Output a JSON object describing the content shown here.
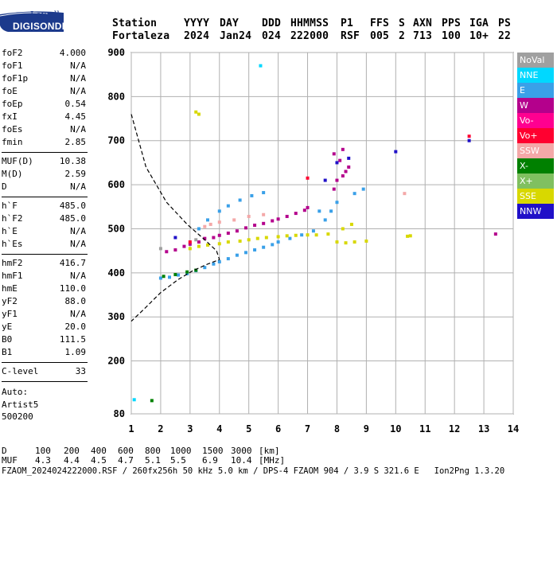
{
  "logo": {
    "brand_top": "Lowell",
    "brand_bottom": "DIGISONDE"
  },
  "header": {
    "labels": [
      "Station",
      "YYYY",
      "DAY",
      "DDD",
      "HHMMSS",
      "P1",
      "FFS",
      "S",
      "AXN",
      "PPS",
      "IGA",
      "PS"
    ],
    "values": [
      "Fortaleza",
      "2024",
      "Jan24",
      "024",
      "222000",
      "RSF",
      "005",
      "2",
      "713",
      "100",
      "10+",
      "22"
    ]
  },
  "params": [
    {
      "label": "foF2",
      "value": "4.000"
    },
    {
      "label": "foF1",
      "value": "N/A"
    },
    {
      "label": "foF1p",
      "value": "N/A"
    },
    {
      "label": "foE",
      "value": "N/A"
    },
    {
      "label": "foEp",
      "value": "0.54"
    },
    {
      "label": "fxI",
      "value": "4.45"
    },
    {
      "label": "foEs",
      "value": "N/A"
    },
    {
      "label": "fmin",
      "value": "2.85"
    },
    {
      "label": "MUF(D)",
      "value": "10.38"
    },
    {
      "label": "M(D)",
      "value": "2.59"
    },
    {
      "label": "D",
      "value": "N/A"
    },
    {
      "label": "h`F",
      "value": "485.0"
    },
    {
      "label": "h`F2",
      "value": "485.0"
    },
    {
      "label": "h`E",
      "value": "N/A"
    },
    {
      "label": "h`Es",
      "value": "N/A"
    },
    {
      "label": "hmF2",
      "value": "416.7"
    },
    {
      "label": "hmF1",
      "value": "N/A"
    },
    {
      "label": "hmE",
      "value": "110.0"
    },
    {
      "label": "yF2",
      "value": "88.0"
    },
    {
      "label": "yF1",
      "value": "N/A"
    },
    {
      "label": "yE",
      "value": "20.0"
    },
    {
      "label": "B0",
      "value": "111.5"
    },
    {
      "label": "B1",
      "value": "1.09"
    },
    {
      "label": "C-level",
      "value": "33"
    }
  ],
  "autoscale": {
    "label": "Auto:",
    "software": "Artist5",
    "version": "500200"
  },
  "legend": [
    {
      "label": "NoVal",
      "color": "#a0a0a0"
    },
    {
      "label": "NNE",
      "color": "#00d8ff"
    },
    {
      "label": "E",
      "color": "#3aa0e8"
    },
    {
      "label": "W",
      "color": "#b4008c"
    },
    {
      "label": "Vo-",
      "color": "#ff0090"
    },
    {
      "label": "Vo+",
      "color": "#ff0030"
    },
    {
      "label": "SSW",
      "color": "#f4a8a8"
    },
    {
      "label": "X-",
      "color": "#008000"
    },
    {
      "label": "X+",
      "color": "#80c060"
    },
    {
      "label": "SSE",
      "color": "#d8d800"
    },
    {
      "label": "NNW",
      "color": "#2010c8"
    }
  ],
  "chart_data": {
    "type": "scatter",
    "x_ticks": [
      1,
      2,
      3,
      4,
      5,
      6,
      7,
      8,
      9,
      10,
      11,
      12,
      13,
      14
    ],
    "y_ticks": [
      80,
      200,
      300,
      400,
      500,
      600,
      700,
      800,
      900
    ],
    "xlim": [
      1,
      14
    ],
    "ylim": [
      80,
      900
    ],
    "y_scale": "quasi-log (virtual height, km)",
    "grid": true,
    "series": [
      {
        "color": "#b4008c",
        "points": [
          [
            2.2,
            448
          ],
          [
            2.5,
            452
          ],
          [
            2.8,
            460
          ],
          [
            3.0,
            465
          ],
          [
            3.3,
            470
          ],
          [
            3.5,
            478
          ],
          [
            3.8,
            480
          ],
          [
            4.0,
            485
          ],
          [
            4.3,
            490
          ],
          [
            4.6,
            495
          ],
          [
            4.9,
            502
          ],
          [
            5.2,
            508
          ],
          [
            5.5,
            512
          ],
          [
            5.8,
            518
          ],
          [
            6.0,
            522
          ],
          [
            6.3,
            528
          ],
          [
            6.6,
            535
          ],
          [
            6.9,
            542
          ],
          [
            7.0,
            548
          ],
          [
            7.9,
            590
          ],
          [
            8.0,
            610
          ],
          [
            8.2,
            620
          ],
          [
            8.3,
            630
          ],
          [
            8.4,
            640
          ],
          [
            8.1,
            655
          ],
          [
            7.9,
            670
          ],
          [
            8.2,
            680
          ],
          [
            13.4,
            488
          ]
        ]
      },
      {
        "color": "#3aa0e8",
        "points": [
          [
            2.0,
            388
          ],
          [
            2.3,
            390
          ],
          [
            2.6,
            395
          ],
          [
            2.9,
            398
          ],
          [
            3.2,
            405
          ],
          [
            3.5,
            412
          ],
          [
            3.8,
            420
          ],
          [
            4.0,
            425
          ],
          [
            4.3,
            432
          ],
          [
            4.6,
            440
          ],
          [
            4.9,
            446
          ],
          [
            5.2,
            452
          ],
          [
            5.5,
            458
          ],
          [
            5.8,
            464
          ],
          [
            6.0,
            470
          ],
          [
            6.4,
            478
          ],
          [
            6.8,
            486
          ],
          [
            7.2,
            495
          ],
          [
            7.6,
            520
          ],
          [
            7.8,
            540
          ],
          [
            8.0,
            560
          ],
          [
            3.3,
            500
          ],
          [
            3.6,
            520
          ],
          [
            4.0,
            540
          ],
          [
            4.3,
            552
          ],
          [
            4.7,
            565
          ],
          [
            5.1,
            575
          ],
          [
            5.5,
            582
          ],
          [
            7.4,
            540
          ],
          [
            8.6,
            580
          ],
          [
            8.9,
            590
          ]
        ]
      },
      {
        "color": "#d8d800",
        "points": [
          [
            3.0,
            455
          ],
          [
            3.3,
            460
          ],
          [
            3.6,
            463
          ],
          [
            4.0,
            466
          ],
          [
            4.3,
            470
          ],
          [
            4.7,
            472
          ],
          [
            5.0,
            475
          ],
          [
            5.3,
            478
          ],
          [
            5.6,
            480
          ],
          [
            6.0,
            482
          ],
          [
            6.3,
            484
          ],
          [
            6.6,
            485
          ],
          [
            7.0,
            486
          ],
          [
            7.3,
            486
          ],
          [
            7.7,
            488
          ],
          [
            8.0,
            470
          ],
          [
            8.3,
            468
          ],
          [
            8.6,
            470
          ],
          [
            9.0,
            472
          ],
          [
            8.2,
            500
          ],
          [
            8.5,
            510
          ],
          [
            10.4,
            483
          ],
          [
            10.5,
            484
          ],
          [
            3.2,
            765
          ],
          [
            3.3,
            760
          ]
        ]
      },
      {
        "color": "#008000",
        "points": [
          [
            2.1,
            392
          ],
          [
            2.5,
            396
          ],
          [
            2.9,
            402
          ],
          [
            3.2,
            406
          ],
          [
            1.7,
            110
          ]
        ]
      },
      {
        "color": "#f4a8a8",
        "points": [
          [
            3.5,
            505
          ],
          [
            3.7,
            510
          ],
          [
            4.0,
            515
          ],
          [
            4.5,
            520
          ],
          [
            5.0,
            528
          ],
          [
            5.5,
            532
          ],
          [
            10.3,
            580
          ]
        ]
      },
      {
        "color": "#2010c8",
        "points": [
          [
            7.6,
            610
          ],
          [
            8.0,
            650
          ],
          [
            8.4,
            660
          ],
          [
            10.0,
            675
          ],
          [
            12.5,
            700
          ],
          [
            2.5,
            480
          ]
        ]
      },
      {
        "color": "#ff0030",
        "points": [
          [
            7.0,
            615
          ],
          [
            3.0,
            470
          ],
          [
            12.5,
            710
          ]
        ]
      },
      {
        "color": "#00d8ff",
        "points": [
          [
            5.4,
            870
          ],
          [
            1.1,
            112
          ]
        ]
      },
      {
        "color": "#a0a0a0",
        "points": [
          [
            2.0,
            455
          ],
          [
            3.2,
            475
          ]
        ]
      }
    ]
  },
  "profile_line": [
    [
      1.0,
      760
    ],
    [
      1.5,
      640
    ],
    [
      2.2,
      560
    ],
    [
      2.9,
      510
    ],
    [
      3.5,
      475
    ],
    [
      3.9,
      450
    ],
    [
      4.0,
      430
    ],
    [
      3.6,
      420
    ],
    [
      3.1,
      405
    ],
    [
      2.6,
      385
    ],
    [
      2.0,
      355
    ],
    [
      1.5,
      322
    ],
    [
      1.0,
      290
    ]
  ],
  "footer": {
    "row1": [
      "D",
      "100",
      "200",
      "400",
      "600",
      "800",
      "1000",
      "1500",
      "3000",
      "[km]"
    ],
    "row2": [
      "MUF",
      "4.3",
      "4.4",
      "4.5",
      "4.7",
      "5.1",
      "5.5",
      "6.9",
      "10.4",
      "[MHz]"
    ],
    "file_line": "FZAOM_2024024222000.RSF / 260fx256h 50 kHz 5.0 km / DPS-4 FZAOM 904 / 3.9 S 321.6 E   Ion2Png 1.3.20"
  }
}
